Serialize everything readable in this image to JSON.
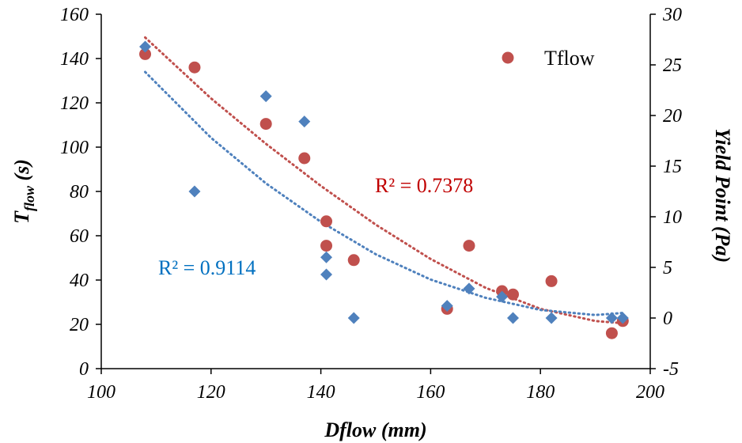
{
  "chart_data": {
    "type": "scatter",
    "xlabel": "Dflow (mm)",
    "ylabel_left": {
      "main": "T",
      "sub": "flow",
      "unit": " (s)"
    },
    "ylabel_right": "Yield Point (Pa)",
    "xlim": [
      100,
      200
    ],
    "ylim_left": [
      0,
      160
    ],
    "ylim_right": [
      -5,
      30
    ],
    "x_ticks": [
      "100",
      "120",
      "140",
      "160",
      "180",
      "200"
    ],
    "y_left_ticks": [
      "0",
      "20",
      "40",
      "60",
      "80",
      "100",
      "120",
      "140",
      "160"
    ],
    "y_right_ticks": [
      "-5",
      "0",
      "5",
      "10",
      "15",
      "20",
      "25",
      "30"
    ],
    "grid": false,
    "legend": {
      "position": "top-right",
      "entries": [
        "Tflow"
      ]
    },
    "series": [
      {
        "name": "Tflow",
        "axis": "left",
        "marker": "circle",
        "color": "#c0504d",
        "points": [
          [
            108,
            142
          ],
          [
            117,
            136
          ],
          [
            130,
            110.5
          ],
          [
            137,
            95
          ],
          [
            141,
            66.5
          ],
          [
            141,
            55.5
          ],
          [
            146,
            49
          ],
          [
            163,
            27
          ],
          [
            167,
            55.5
          ],
          [
            173,
            35
          ],
          [
            175,
            33.5
          ],
          [
            182,
            39.5
          ],
          [
            193,
            16
          ],
          [
            195,
            21.5
          ]
        ],
        "trendline": {
          "type": "polynomial",
          "r2_label": "R² = 0.7378",
          "color": "#c0504d",
          "curve": [
            [
              108,
              149.5
            ],
            [
              120,
              122
            ],
            [
              130,
              101.5
            ],
            [
              140,
              82.5
            ],
            [
              150,
              65
            ],
            [
              160,
              49.5
            ],
            [
              170,
              36.5
            ],
            [
              180,
              27
            ],
            [
              190,
              21.5
            ],
            [
              195,
              20.5
            ]
          ]
        }
      },
      {
        "axis": "right",
        "marker": "diamond",
        "color": "#4f81bd",
        "points": [
          [
            108,
            26.8
          ],
          [
            117,
            12.5
          ],
          [
            130,
            21.9
          ],
          [
            137,
            19.4
          ],
          [
            141,
            6
          ],
          [
            141,
            4.3
          ],
          [
            146,
            0
          ],
          [
            163,
            1.2
          ],
          [
            167,
            2.9
          ],
          [
            173,
            2.1
          ],
          [
            175,
            0
          ],
          [
            182,
            0
          ],
          [
            193,
            0
          ],
          [
            195,
            0
          ]
        ],
        "trendline": {
          "type": "polynomial",
          "r2_label": "R² = 0.9114",
          "color": "#4f81bd",
          "curve": [
            [
              108,
              24.3
            ],
            [
              120,
              17.8
            ],
            [
              130,
              13.3
            ],
            [
              140,
              9.5
            ],
            [
              150,
              6.3
            ],
            [
              160,
              3.8
            ],
            [
              170,
              2
            ],
            [
              180,
              0.8
            ],
            [
              190,
              0.3
            ],
            [
              195,
              0.5
            ]
          ]
        }
      }
    ]
  }
}
